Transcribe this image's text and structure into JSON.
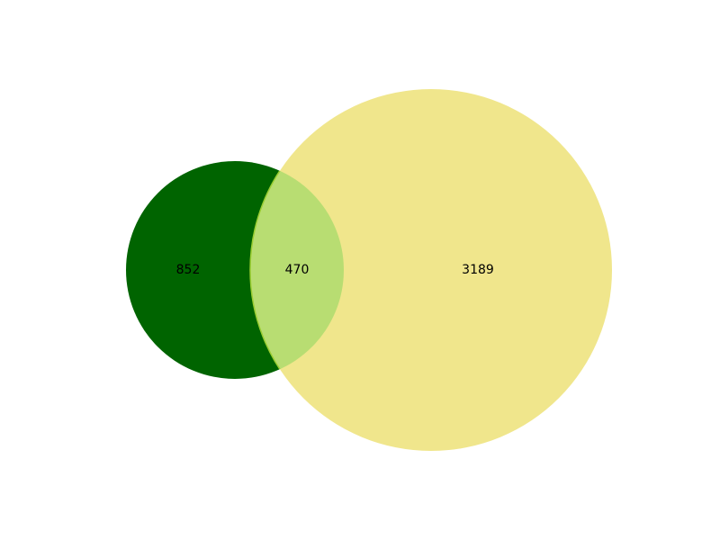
{
  "chart_data": {
    "type": "venn",
    "sets": [
      {
        "id": "left",
        "size": 1322,
        "color": "#006400"
      },
      {
        "id": "right",
        "size": 3659,
        "color": "#f0e68c"
      }
    ],
    "regions": [
      {
        "id": "left_only",
        "label": "852",
        "value": 852
      },
      {
        "id": "intersection",
        "label": "470",
        "value": 470,
        "color": "#b8dd72",
        "edge_color": "#9acd32"
      },
      {
        "id": "right_only",
        "label": "3189",
        "value": 3189
      }
    ]
  }
}
